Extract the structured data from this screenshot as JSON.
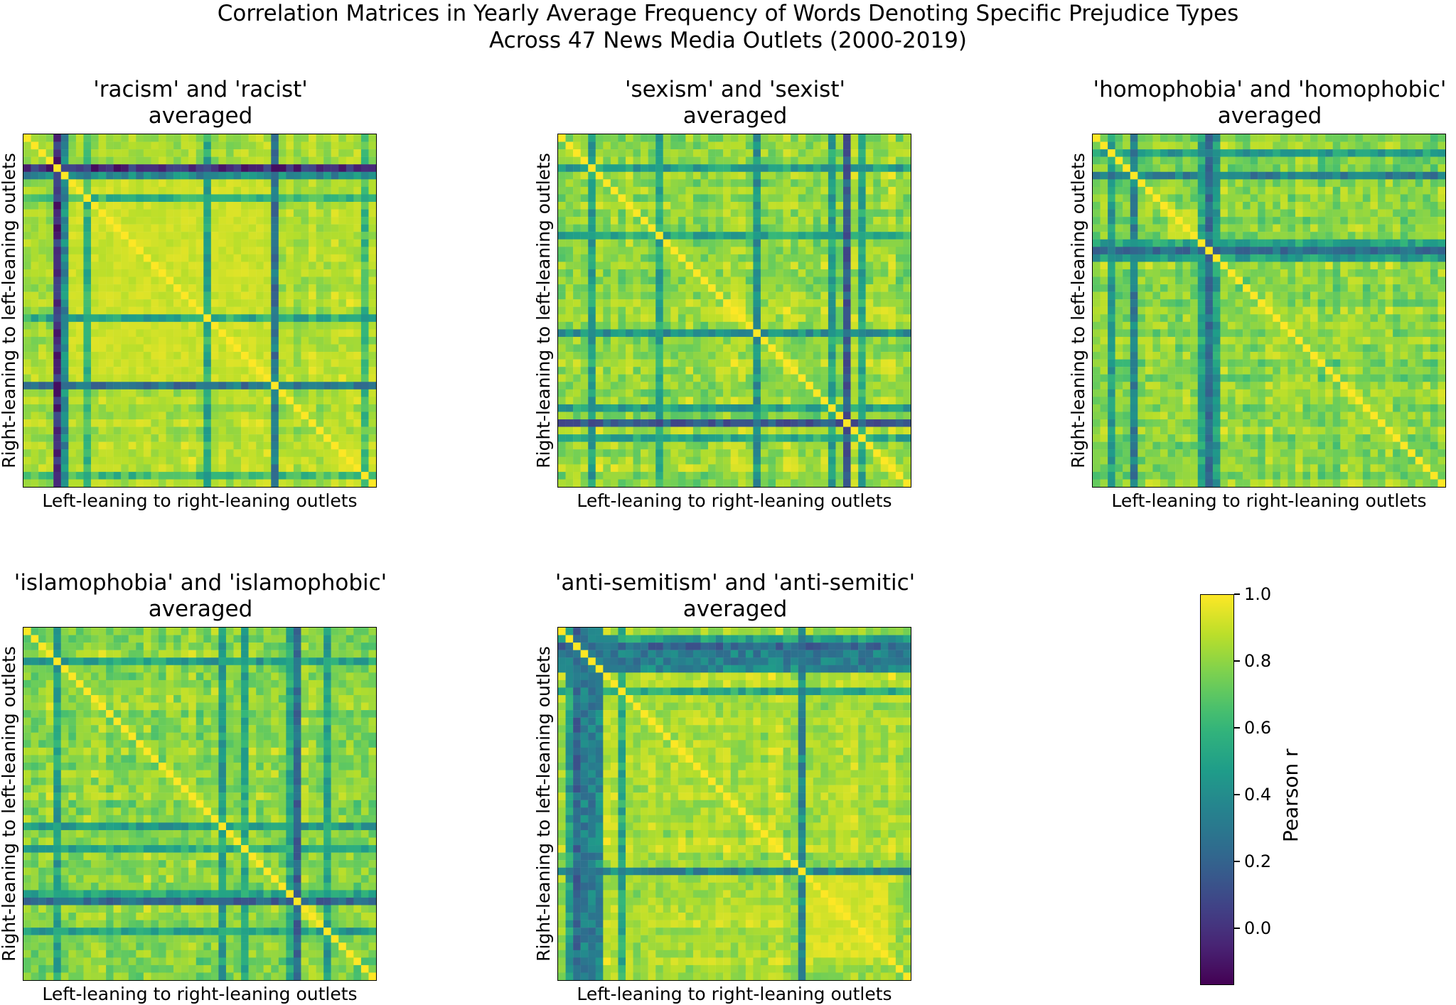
{
  "figure": {
    "title_line1": "Correlation Matrices in Yearly Average Frequency of Words Denoting Specific Prejudice Types",
    "title_line2": "Across 47 News Media Outlets (2000-2019)"
  },
  "colormap": {
    "name": "viridis",
    "stops": [
      "#440154",
      "#482878",
      "#3e4989",
      "#31688e",
      "#26828e",
      "#1f9e89",
      "#35b779",
      "#6ece58",
      "#b5de2b",
      "#fde725"
    ]
  },
  "colorbar": {
    "label": "Pearson r",
    "vmin": -0.17,
    "vmax": 1.0,
    "ticks": [
      "0.0",
      "0.2",
      "0.4",
      "0.6",
      "0.8",
      "1.0"
    ]
  },
  "chart_data": [
    {
      "type": "heatmap",
      "title_line1": "'racism' and 'racist'",
      "title_line2": "averaged",
      "xlabel": "Left-leaning to right-leaning outlets",
      "ylabel": "Right-leaning to left-leaning outlets",
      "n": 47,
      "seed": 11,
      "base": 0.86,
      "noise": 0.14,
      "low_rows": [
        [
          4,
          -0.05
        ],
        [
          5,
          0.35
        ],
        [
          33,
          0.25
        ],
        [
          8,
          0.55
        ],
        [
          24,
          0.5
        ],
        [
          45,
          0.6
        ]
      ],
      "blocks": [
        [
          6,
          32,
          0.95
        ]
      ]
    },
    {
      "type": "heatmap",
      "title_line1": "'sexism' and 'sexist'",
      "title_line2": "averaged",
      "xlabel": "Left-leaning to right-leaning outlets",
      "ylabel": "Right-leaning to left-leaning outlets",
      "n": 47,
      "seed": 23,
      "base": 0.82,
      "noise": 0.2,
      "low_rows": [
        [
          38,
          0.15
        ],
        [
          4,
          0.45
        ],
        [
          38,
          0.15
        ],
        [
          26,
          0.4
        ],
        [
          13,
          0.5
        ],
        [
          36,
          0.45
        ],
        [
          40,
          0.5
        ]
      ],
      "blocks": []
    },
    {
      "type": "heatmap",
      "title_line1": "'homophobia' and 'homophobic'",
      "title_line2": "averaged",
      "xlabel": "Left-leaning to right-leaning outlets",
      "ylabel": "Right-leaning to left-leaning outlets",
      "n": 47,
      "seed": 37,
      "base": 0.8,
      "noise": 0.2,
      "low_rows": [
        [
          15,
          0.25
        ],
        [
          5,
          0.3
        ],
        [
          15,
          0.25
        ],
        [
          16,
          0.45
        ],
        [
          14,
          0.5
        ],
        [
          2,
          0.45
        ]
      ],
      "blocks": [
        [
          10,
          13,
          0.95
        ]
      ]
    },
    {
      "type": "heatmap",
      "title_line1": "'islamophobia' and 'islamophobic'",
      "title_line2": "averaged",
      "xlabel": "Left-leaning to right-leaning outlets",
      "ylabel": "Right-leaning to left-leaning outlets",
      "n": 47,
      "seed": 53,
      "base": 0.82,
      "noise": 0.2,
      "low_rows": [
        [
          36,
          0.2
        ],
        [
          4,
          0.45
        ],
        [
          26,
          0.45
        ],
        [
          40,
          0.45
        ],
        [
          29,
          0.5
        ],
        [
          35,
          0.5
        ]
      ],
      "blocks": []
    },
    {
      "type": "heatmap",
      "title_line1": "'anti-semitism' and 'anti-semitic'",
      "title_line2": "averaged",
      "xlabel": "Left-leaning to right-leaning outlets",
      "ylabel": "Right-leaning to left-leaning outlets",
      "n": 47,
      "seed": 71,
      "base": 0.85,
      "noise": 0.16,
      "low_rows": [
        [
          32,
          0.35
        ],
        [
          2,
          0.2
        ],
        [
          4,
          0.3
        ],
        [
          3,
          0.3
        ],
        [
          5,
          0.35
        ],
        [
          8,
          0.5
        ],
        [
          1,
          0.45
        ]
      ],
      "blocks": [
        [
          33,
          43,
          0.97
        ]
      ]
    }
  ]
}
